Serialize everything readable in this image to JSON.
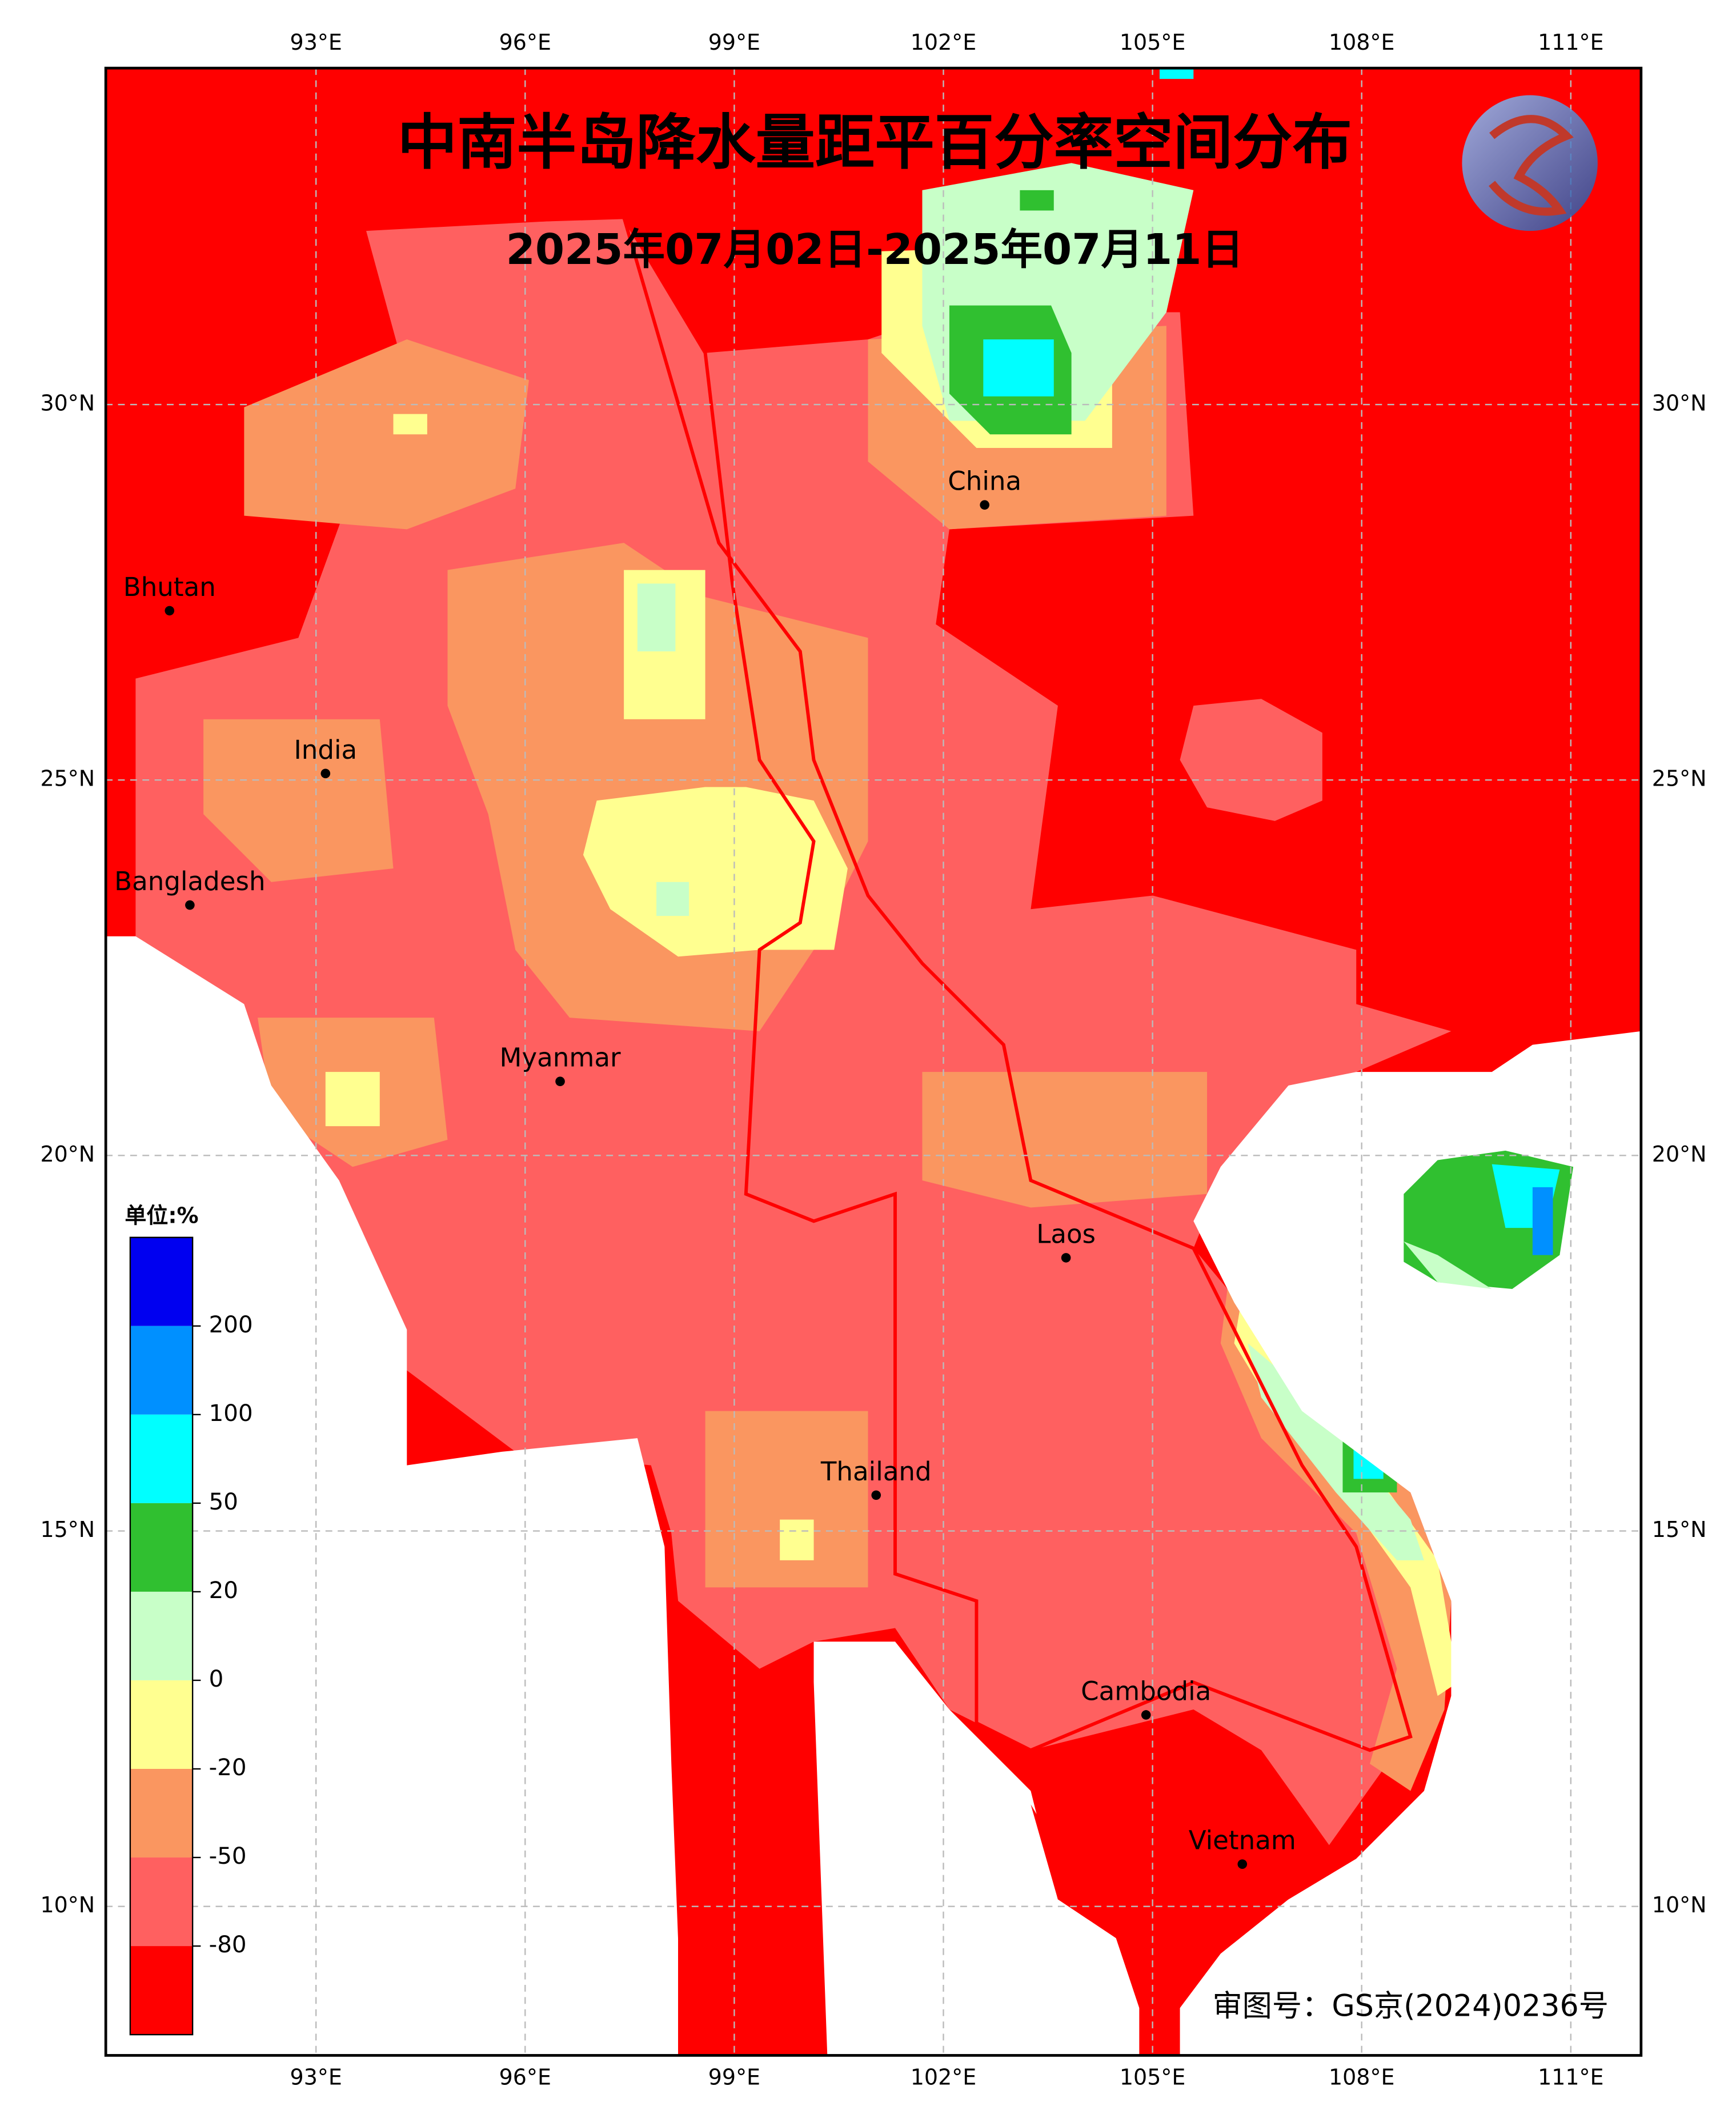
{
  "header": {
    "title": "中南半岛降水量距平百分率空间分布",
    "subtitle": "2025年07月02日-2025年07月11日"
  },
  "axes": {
    "lon_ticks": [
      "93°E",
      "96°E",
      "99°E",
      "102°E",
      "105°E",
      "108°E",
      "111°E"
    ],
    "lat_ticks": [
      "30°N",
      "25°N",
      "20°N",
      "15°N",
      "10°N"
    ]
  },
  "places": [
    {
      "label": "China"
    },
    {
      "label": "Bhutan"
    },
    {
      "label": "India"
    },
    {
      "label": "Bangladesh"
    },
    {
      "label": "Myanmar"
    },
    {
      "label": "Laos"
    },
    {
      "label": "Thailand"
    },
    {
      "label": "Cambodia"
    },
    {
      "label": "Vietnam"
    }
  ],
  "legend": {
    "unit": "单位:%",
    "colors": [
      "#0000f0",
      "#0090ff",
      "#00ffff",
      "#30c030",
      "#c8ffc8",
      "#ffff90",
      "#fa9660",
      "#ff6060",
      "#ff0000"
    ],
    "labels": [
      "200",
      "100",
      "50",
      "20",
      "0",
      "-20",
      "-50",
      "-80"
    ]
  },
  "footer": {
    "approval": "审图号：GS京(2024)0236号"
  }
}
